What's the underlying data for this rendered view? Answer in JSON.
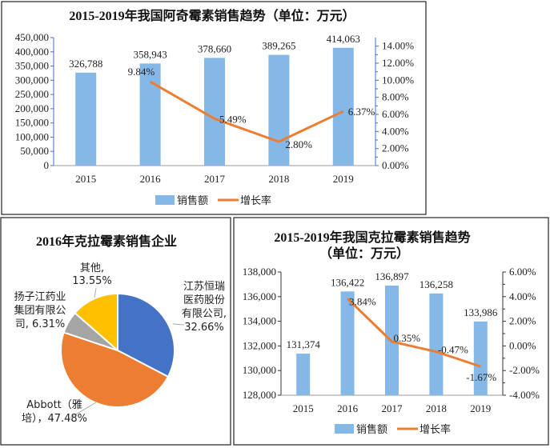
{
  "colors": {
    "bar": "#85B8E6",
    "line": "#ED7D31",
    "blue": "#4472C4",
    "orange": "#ED7D31",
    "gray": "#A5A5A5",
    "yellow": "#FFC000"
  },
  "chart_data": [
    {
      "type": "bar+line",
      "title": "2015-2019年我国阿奇霉素销售趋势（单位：万元）",
      "categories": [
        "2015",
        "2016",
        "2017",
        "2018",
        "2019"
      ],
      "series": [
        {
          "name": "销售额",
          "type": "bar",
          "axis": "left",
          "values": [
            326788,
            358943,
            378660,
            389265,
            414063
          ],
          "labels": [
            "326,788",
            "358,943",
            "378,660",
            "389,265",
            "414,063"
          ]
        },
        {
          "name": "增长率",
          "type": "line",
          "axis": "right",
          "values": [
            null,
            9.84,
            5.49,
            2.8,
            6.37
          ],
          "labels": [
            null,
            "9.84%",
            "5.49%",
            "2.80%",
            "6.37%"
          ]
        }
      ],
      "left_ticks": [
        "0",
        "50,000",
        "100,000",
        "150,000",
        "200,000",
        "250,000",
        "300,000",
        "350,000",
        "400,000",
        "450,000"
      ],
      "left_range": [
        0,
        450000
      ],
      "right_ticks": [
        "0.00%",
        "2.00%",
        "4.00%",
        "6.00%",
        "8.00%",
        "10.00%",
        "12.00%",
        "14.00%"
      ],
      "right_range": [
        0,
        15
      ],
      "legend_position": "bottom"
    },
    {
      "type": "pie",
      "title": "2016年克拉霉素销售企业",
      "slices": [
        {
          "name": "江苏恒瑞医药股份有限公司",
          "value": 32.66,
          "label_lines": [
            "江苏恒瑞",
            "医药股份",
            "有限公司,",
            "32.66%"
          ],
          "color": "#4472C4"
        },
        {
          "name": "Abbott（雅培）",
          "value": 47.48,
          "label_lines": [
            "Abbott（雅",
            "培），47.48%"
          ],
          "color": "#ED7D31"
        },
        {
          "name": "扬子江药业集团有限公司",
          "value": 6.31,
          "label_lines": [
            "扬子江药业",
            "集团有限公",
            "司, 6.31%"
          ],
          "color": "#A5A5A5"
        },
        {
          "name": "其他",
          "value": 13.55,
          "label_lines": [
            "其他,",
            "13.55%"
          ],
          "color": "#FFC000"
        }
      ]
    },
    {
      "type": "bar+line",
      "title_lines": [
        "2015-2019年我国克拉霉素销售趋势",
        "（单位：万元）"
      ],
      "categories": [
        "2015",
        "2016",
        "2017",
        "2018",
        "2019"
      ],
      "series": [
        {
          "name": "销售额",
          "type": "bar",
          "axis": "left",
          "values": [
            131374,
            136422,
            136897,
            136258,
            133986
          ],
          "labels": [
            "131,374",
            "136,422",
            "136,897",
            "136,258",
            "133,986"
          ]
        },
        {
          "name": "增长率",
          "type": "line",
          "axis": "right",
          "values": [
            null,
            3.84,
            0.35,
            -0.47,
            -1.67
          ],
          "labels": [
            null,
            "3.84%",
            "0.35%",
            "-0.47%",
            "-1.67%"
          ]
        }
      ],
      "left_ticks": [
        "128,000",
        "130,000",
        "132,000",
        "134,000",
        "136,000",
        "138,000"
      ],
      "left_range": [
        128000,
        138000
      ],
      "right_ticks": [
        "-4.00%",
        "-2.00%",
        "0.00%",
        "2.00%",
        "4.00%",
        "6.00%"
      ],
      "right_range": [
        -4,
        6
      ],
      "legend_position": "bottom"
    }
  ]
}
